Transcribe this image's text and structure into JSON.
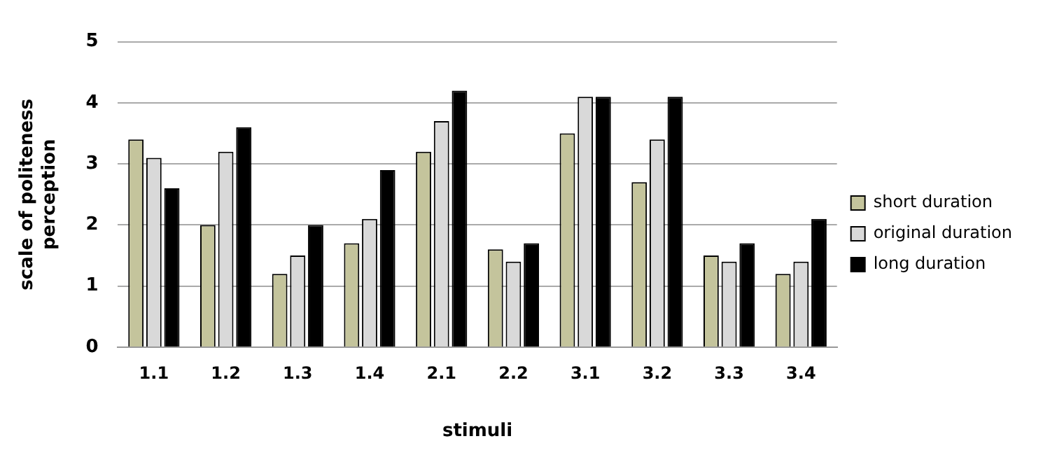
{
  "chart_data": {
    "type": "bar",
    "xlabel": "stimuli",
    "ylabel": "scale of politeness perception",
    "categories": [
      "1.1",
      "1.2",
      "1.3",
      "1.4",
      "2.1",
      "2.2",
      "3.1",
      "3.2",
      "3.3",
      "3.4"
    ],
    "series": [
      {
        "name": "short duration",
        "color": "#c4c49c",
        "values": [
          3.4,
          2.0,
          1.2,
          1.7,
          3.2,
          1.6,
          3.5,
          2.7,
          1.5,
          1.2
        ]
      },
      {
        "name": "original duration",
        "color": "#d9d9d9",
        "values": [
          3.1,
          3.2,
          1.5,
          2.1,
          3.7,
          1.4,
          4.1,
          3.4,
          1.4,
          1.4
        ]
      },
      {
        "name": "long duration",
        "color": "#000000",
        "values": [
          2.6,
          3.6,
          2.0,
          2.9,
          4.2,
          1.7,
          4.1,
          4.1,
          1.7,
          2.1
        ]
      }
    ],
    "ylim": [
      0,
      5
    ],
    "yticks": [
      0,
      1,
      2,
      3,
      4,
      5
    ],
    "grid": "y",
    "legend": "right"
  }
}
